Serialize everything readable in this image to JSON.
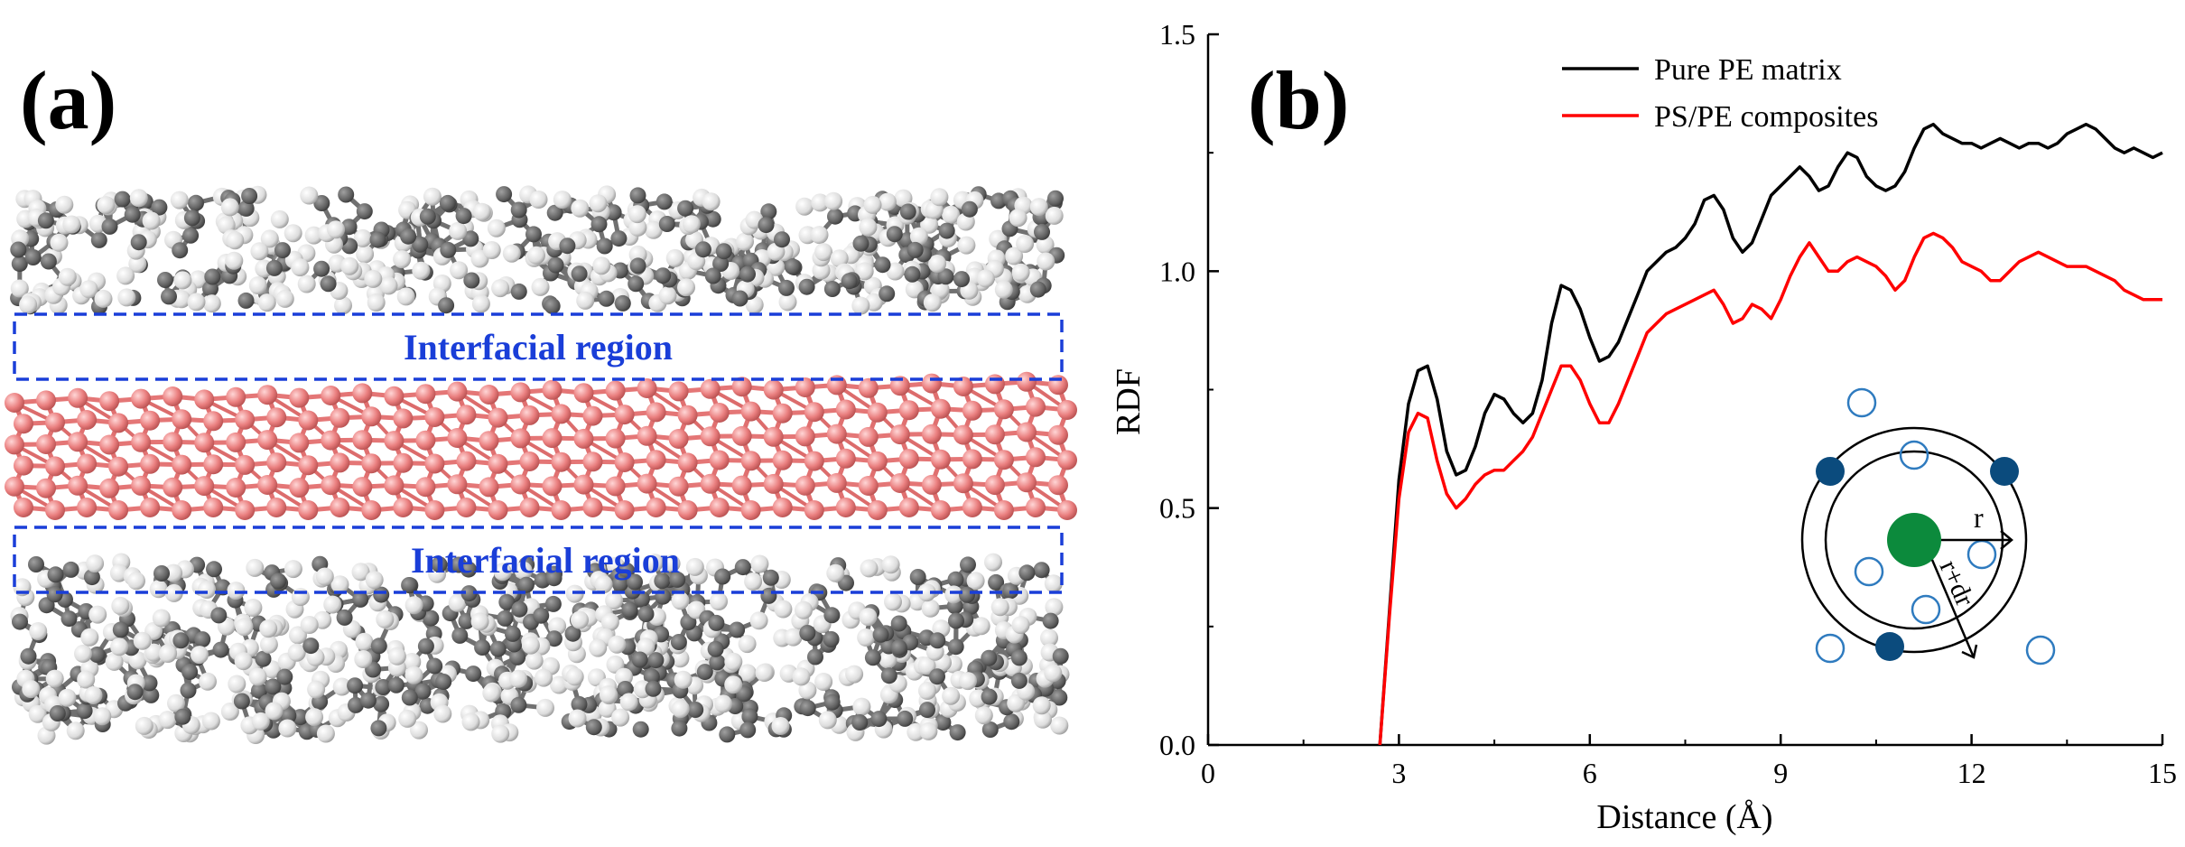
{
  "figure": {
    "panel_a_label": "(a)",
    "panel_b_label": "(b)"
  },
  "panel_a": {
    "region_label_top": "Interfacial region",
    "region_label_bottom": "Interfacial region",
    "colors": {
      "pe_dark": "#6a6a6a",
      "pe_light": "#f2f2f2",
      "ps": "#e87878",
      "region_box": "#1a3ed8"
    }
  },
  "chart_data": {
    "type": "line",
    "title": "",
    "xlabel": "Distance (Å)",
    "ylabel": "RDF",
    "xlim": [
      0,
      15
    ],
    "ylim": [
      0,
      1.5
    ],
    "xticks": [
      0,
      3,
      6,
      9,
      12,
      15
    ],
    "yticks": [
      0.0,
      0.5,
      1.0,
      1.5
    ],
    "xtick_labels": [
      "0",
      "3",
      "6",
      "9",
      "12",
      "15"
    ],
    "ytick_labels": [
      "0.0",
      "0.5",
      "1.0",
      "1.5"
    ],
    "grid": false,
    "legend_position": "top-center",
    "series": [
      {
        "name": "Pure PE matrix",
        "color": "#000000",
        "x": [
          2.7,
          2.85,
          3.0,
          3.15,
          3.3,
          3.45,
          3.6,
          3.75,
          3.9,
          4.05,
          4.2,
          4.35,
          4.5,
          4.65,
          4.8,
          4.95,
          5.1,
          5.25,
          5.4,
          5.55,
          5.7,
          5.85,
          6.0,
          6.15,
          6.3,
          6.45,
          6.6,
          6.75,
          6.9,
          7.05,
          7.2,
          7.35,
          7.5,
          7.65,
          7.8,
          7.95,
          8.1,
          8.25,
          8.4,
          8.55,
          8.7,
          8.85,
          9.0,
          9.15,
          9.3,
          9.45,
          9.6,
          9.75,
          9.9,
          10.05,
          10.2,
          10.35,
          10.5,
          10.65,
          10.8,
          10.95,
          11.1,
          11.25,
          11.4,
          11.55,
          11.7,
          11.85,
          12.0,
          12.15,
          12.3,
          12.45,
          12.6,
          12.75,
          12.9,
          13.05,
          13.2,
          13.35,
          13.5,
          13.65,
          13.8,
          13.95,
          14.1,
          14.25,
          14.4,
          14.55,
          14.7,
          14.85,
          15.0
        ],
        "values": [
          0.0,
          0.28,
          0.56,
          0.72,
          0.79,
          0.8,
          0.73,
          0.62,
          0.57,
          0.58,
          0.63,
          0.7,
          0.74,
          0.73,
          0.7,
          0.68,
          0.7,
          0.77,
          0.89,
          0.97,
          0.96,
          0.92,
          0.86,
          0.81,
          0.82,
          0.85,
          0.9,
          0.95,
          1.0,
          1.02,
          1.04,
          1.05,
          1.07,
          1.1,
          1.15,
          1.16,
          1.13,
          1.07,
          1.04,
          1.06,
          1.11,
          1.16,
          1.18,
          1.2,
          1.22,
          1.2,
          1.17,
          1.18,
          1.22,
          1.25,
          1.24,
          1.2,
          1.18,
          1.17,
          1.18,
          1.21,
          1.26,
          1.3,
          1.31,
          1.29,
          1.28,
          1.27,
          1.27,
          1.26,
          1.27,
          1.28,
          1.27,
          1.26,
          1.27,
          1.27,
          1.26,
          1.27,
          1.29,
          1.3,
          1.31,
          1.3,
          1.28,
          1.26,
          1.25,
          1.26,
          1.25,
          1.24,
          1.25
        ]
      },
      {
        "name": "PS/PE composites",
        "color": "#ff0000",
        "x": [
          2.7,
          2.85,
          3.0,
          3.15,
          3.3,
          3.45,
          3.6,
          3.75,
          3.9,
          4.05,
          4.2,
          4.35,
          4.5,
          4.65,
          4.8,
          4.95,
          5.1,
          5.25,
          5.4,
          5.55,
          5.7,
          5.85,
          6.0,
          6.15,
          6.3,
          6.45,
          6.6,
          6.75,
          6.9,
          7.05,
          7.2,
          7.35,
          7.5,
          7.65,
          7.8,
          7.95,
          8.1,
          8.25,
          8.4,
          8.55,
          8.7,
          8.85,
          9.0,
          9.15,
          9.3,
          9.45,
          9.6,
          9.75,
          9.9,
          10.05,
          10.2,
          10.35,
          10.5,
          10.65,
          10.8,
          10.95,
          11.1,
          11.25,
          11.4,
          11.55,
          11.7,
          11.85,
          12.0,
          12.15,
          12.3,
          12.45,
          12.6,
          12.75,
          12.9,
          13.05,
          13.2,
          13.35,
          13.5,
          13.65,
          13.8,
          13.95,
          14.1,
          14.25,
          14.4,
          14.55,
          14.7,
          14.85,
          15.0
        ],
        "values": [
          0.0,
          0.27,
          0.52,
          0.66,
          0.7,
          0.69,
          0.6,
          0.53,
          0.5,
          0.52,
          0.55,
          0.57,
          0.58,
          0.58,
          0.6,
          0.62,
          0.65,
          0.7,
          0.75,
          0.8,
          0.8,
          0.77,
          0.72,
          0.68,
          0.68,
          0.72,
          0.77,
          0.82,
          0.87,
          0.89,
          0.91,
          0.92,
          0.93,
          0.94,
          0.95,
          0.96,
          0.93,
          0.89,
          0.9,
          0.93,
          0.92,
          0.9,
          0.94,
          0.99,
          1.03,
          1.06,
          1.03,
          1.0,
          1.0,
          1.02,
          1.03,
          1.02,
          1.01,
          0.99,
          0.96,
          0.98,
          1.03,
          1.07,
          1.08,
          1.07,
          1.05,
          1.02,
          1.01,
          1.0,
          0.98,
          0.98,
          1.0,
          1.02,
          1.03,
          1.04,
          1.03,
          1.02,
          1.01,
          1.01,
          1.01,
          1.0,
          0.99,
          0.98,
          0.96,
          0.95,
          0.94,
          0.94,
          0.94
        ]
      }
    ],
    "inset": {
      "label_r": "r",
      "label_rdr": "r+dr",
      "colors": {
        "center": "#0c8a3c",
        "filled": "#0b4b7d",
        "open": "#2f7bbf"
      }
    }
  }
}
